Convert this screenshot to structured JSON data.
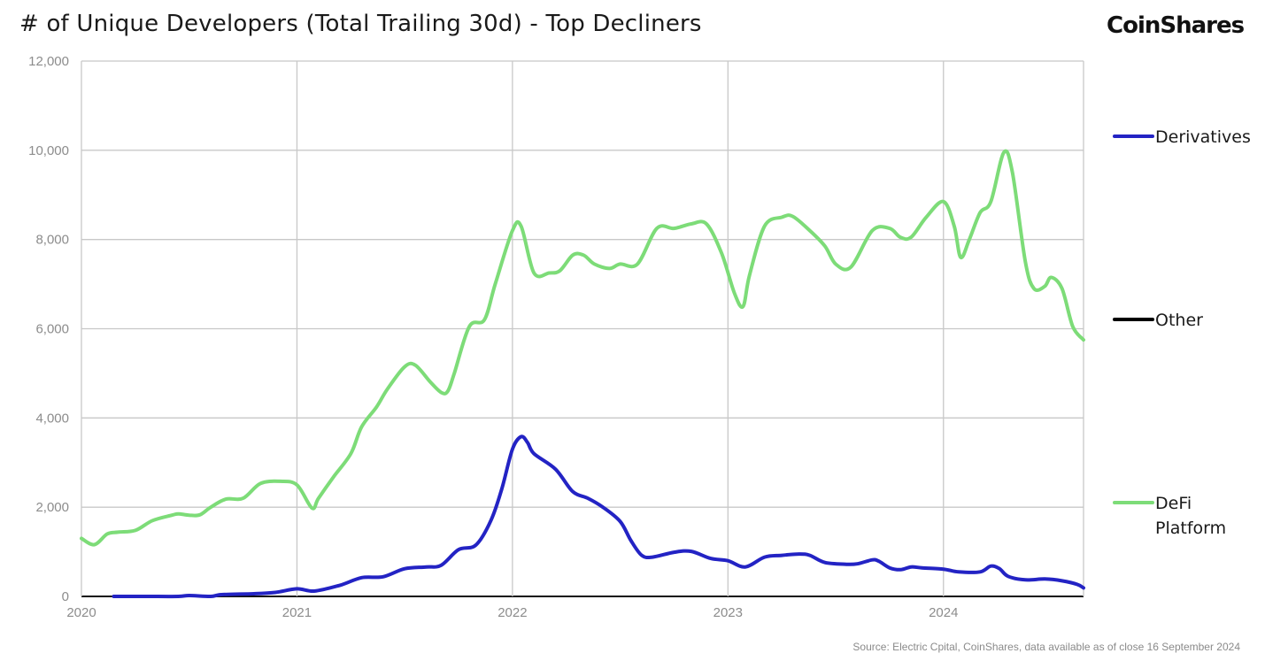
{
  "header": {
    "title": "# of Unique Developers (Total Trailing 30d) - Top Decliners",
    "logo_text": "CoinShares"
  },
  "footer": {
    "source": "Source: Electric Cpital, CoinShares, data available as of close 16 September 2024"
  },
  "chart_data": {
    "type": "line",
    "title": "# of Unique Developers (Total Trailing 30d) - Top Decliners",
    "xlabel": "",
    "ylabel": "",
    "xlim": [
      2020.0,
      2024.65
    ],
    "ylim": [
      0,
      12000
    ],
    "x_ticks": [
      "2020",
      "2021",
      "2022",
      "2023",
      "2024"
    ],
    "y_ticks": [
      "0",
      "2,000",
      "4,000",
      "6,000",
      "8,000",
      "10,000",
      "12,000"
    ],
    "grid": true,
    "legend_position": "right",
    "series": [
      {
        "name": "Derivatives",
        "color": "#2323c4",
        "legend_lines": [
          "Derivatives"
        ],
        "points": [
          [
            2020.15,
            0
          ],
          [
            2020.3,
            0
          ],
          [
            2020.45,
            0
          ],
          [
            2020.5,
            20
          ],
          [
            2020.6,
            0
          ],
          [
            2020.65,
            40
          ],
          [
            2020.8,
            60
          ],
          [
            2020.9,
            90
          ],
          [
            2021.0,
            170
          ],
          [
            2021.08,
            120
          ],
          [
            2021.2,
            250
          ],
          [
            2021.3,
            420
          ],
          [
            2021.4,
            440
          ],
          [
            2021.5,
            620
          ],
          [
            2021.6,
            660
          ],
          [
            2021.67,
            700
          ],
          [
            2021.75,
            1050
          ],
          [
            2021.83,
            1150
          ],
          [
            2021.9,
            1700
          ],
          [
            2021.95,
            2400
          ],
          [
            2022.0,
            3300
          ],
          [
            2022.04,
            3580
          ],
          [
            2022.07,
            3450
          ],
          [
            2022.1,
            3200
          ],
          [
            2022.2,
            2850
          ],
          [
            2022.28,
            2350
          ],
          [
            2022.35,
            2200
          ],
          [
            2022.42,
            2000
          ],
          [
            2022.5,
            1680
          ],
          [
            2022.55,
            1250
          ],
          [
            2022.6,
            920
          ],
          [
            2022.65,
            880
          ],
          [
            2022.75,
            990
          ],
          [
            2022.83,
            1010
          ],
          [
            2022.92,
            850
          ],
          [
            2023.0,
            800
          ],
          [
            2023.08,
            660
          ],
          [
            2023.17,
            880
          ],
          [
            2023.25,
            920
          ],
          [
            2023.33,
            950
          ],
          [
            2023.38,
            920
          ],
          [
            2023.45,
            760
          ],
          [
            2023.55,
            720
          ],
          [
            2023.6,
            730
          ],
          [
            2023.67,
            820
          ],
          [
            2023.7,
            790
          ],
          [
            2023.75,
            640
          ],
          [
            2023.8,
            600
          ],
          [
            2023.85,
            660
          ],
          [
            2023.9,
            640
          ],
          [
            2024.0,
            610
          ],
          [
            2024.07,
            550
          ],
          [
            2024.17,
            550
          ],
          [
            2024.22,
            680
          ],
          [
            2024.26,
            620
          ],
          [
            2024.3,
            450
          ],
          [
            2024.38,
            370
          ],
          [
            2024.47,
            390
          ],
          [
            2024.55,
            350
          ],
          [
            2024.62,
            270
          ],
          [
            2024.65,
            190
          ]
        ]
      },
      {
        "name": "Other",
        "color": "#000000",
        "legend_lines": [
          "Other"
        ],
        "points": []
      },
      {
        "name": "DeFi Platform",
        "color": "#7ddc78",
        "legend_lines": [
          "DeFi",
          "Platform"
        ],
        "points": [
          [
            2020.0,
            1300
          ],
          [
            2020.06,
            1160
          ],
          [
            2020.12,
            1400
          ],
          [
            2020.17,
            1440
          ],
          [
            2020.25,
            1480
          ],
          [
            2020.33,
            1700
          ],
          [
            2020.42,
            1820
          ],
          [
            2020.45,
            1850
          ],
          [
            2020.5,
            1820
          ],
          [
            2020.55,
            1830
          ],
          [
            2020.6,
            2000
          ],
          [
            2020.67,
            2180
          ],
          [
            2020.75,
            2200
          ],
          [
            2020.83,
            2530
          ],
          [
            2020.92,
            2580
          ],
          [
            2021.0,
            2500
          ],
          [
            2021.07,
            1980
          ],
          [
            2021.1,
            2200
          ],
          [
            2021.17,
            2680
          ],
          [
            2021.25,
            3200
          ],
          [
            2021.3,
            3800
          ],
          [
            2021.37,
            4250
          ],
          [
            2021.42,
            4650
          ],
          [
            2021.5,
            5150
          ],
          [
            2021.55,
            5180
          ],
          [
            2021.62,
            4800
          ],
          [
            2021.67,
            4570
          ],
          [
            2021.7,
            4600
          ],
          [
            2021.73,
            5000
          ],
          [
            2021.8,
            6050
          ],
          [
            2021.87,
            6200
          ],
          [
            2021.92,
            7000
          ],
          [
            2022.0,
            8200
          ],
          [
            2022.04,
            8300
          ],
          [
            2022.1,
            7250
          ],
          [
            2022.17,
            7250
          ],
          [
            2022.22,
            7300
          ],
          [
            2022.28,
            7650
          ],
          [
            2022.33,
            7650
          ],
          [
            2022.38,
            7450
          ],
          [
            2022.45,
            7350
          ],
          [
            2022.5,
            7450
          ],
          [
            2022.58,
            7450
          ],
          [
            2022.67,
            8250
          ],
          [
            2022.75,
            8250
          ],
          [
            2022.83,
            8350
          ],
          [
            2022.9,
            8350
          ],
          [
            2022.97,
            7700
          ],
          [
            2023.03,
            6800
          ],
          [
            2023.07,
            6500
          ],
          [
            2023.1,
            7200
          ],
          [
            2023.17,
            8300
          ],
          [
            2023.25,
            8500
          ],
          [
            2023.3,
            8520
          ],
          [
            2023.38,
            8200
          ],
          [
            2023.45,
            7850
          ],
          [
            2023.5,
            7450
          ],
          [
            2023.57,
            7380
          ],
          [
            2023.67,
            8200
          ],
          [
            2023.75,
            8250
          ],
          [
            2023.8,
            8050
          ],
          [
            2023.85,
            8050
          ],
          [
            2023.92,
            8500
          ],
          [
            2024.0,
            8850
          ],
          [
            2024.05,
            8300
          ],
          [
            2024.08,
            7600
          ],
          [
            2024.12,
            8000
          ],
          [
            2024.17,
            8600
          ],
          [
            2024.22,
            8850
          ],
          [
            2024.28,
            9950
          ],
          [
            2024.32,
            9500
          ],
          [
            2024.38,
            7500
          ],
          [
            2024.42,
            6900
          ],
          [
            2024.47,
            6950
          ],
          [
            2024.5,
            7150
          ],
          [
            2024.55,
            6900
          ],
          [
            2024.6,
            6050
          ],
          [
            2024.65,
            5750
          ]
        ]
      }
    ]
  }
}
